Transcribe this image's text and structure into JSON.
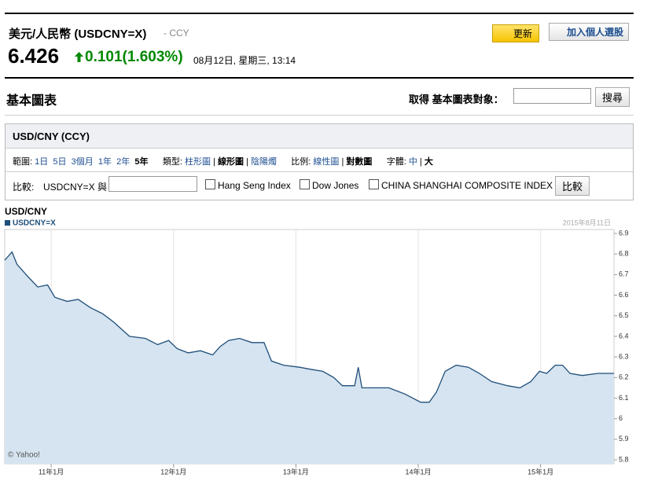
{
  "header": {
    "title": "美元/人民幣 (USDCNY=X)",
    "exchange": "- CCY",
    "price": "6.426",
    "change": "0.101(1.603%)",
    "datetime": "08月12日, 星期三, 13:14",
    "refresh": "更新",
    "add_portfolio": "加入個人選股"
  },
  "section": {
    "title": "基本圖表",
    "search_label": "取得 基本圖表對象：",
    "search_button": "搜尋"
  },
  "panel": {
    "title": "USD/CNY (CCY)",
    "range_label": "範圍:",
    "ranges": [
      "1日",
      "5日",
      "3個月",
      "1年",
      "2年",
      "5年"
    ],
    "type_label": "類型:",
    "types": [
      "柱形圖",
      "線形圖",
      "陰陽燭"
    ],
    "scale_label": "比例:",
    "scales": [
      "線性圖",
      "對數圖"
    ],
    "font_label": "字體:",
    "fonts": [
      "中",
      "大"
    ],
    "compare_label": "比較:",
    "compare_base": "USDCNY=X 與",
    "compare_options": [
      "Hang Seng Index",
      "Dow Jones",
      "CHINA SHANGHAI COMPOSITE INDEX"
    ],
    "compare_button": "比較"
  },
  "chart_data": {
    "type": "area",
    "title": "USD/CNY",
    "date_label": "2015年8月11日",
    "credit": "© Yahoo!",
    "x": [
      2010.62,
      2010.68,
      2010.72,
      2010.81,
      2010.89,
      2010.97,
      2011.03,
      2011.13,
      2011.22,
      2011.32,
      2011.42,
      2011.51,
      2011.64,
      2011.77,
      2011.87,
      2011.96,
      2012.03,
      2012.12,
      2012.22,
      2012.32,
      2012.38,
      2012.45,
      2012.54,
      2012.64,
      2012.74,
      2012.8,
      2012.9,
      2013.03,
      2013.12,
      2013.22,
      2013.31,
      2013.38,
      2013.48,
      2013.51,
      2013.54,
      2013.64,
      2013.76,
      2013.89,
      2014.02,
      2014.09,
      2014.15,
      2014.22,
      2014.31,
      2014.41,
      2014.5,
      2014.6,
      2014.73,
      2014.83,
      2014.92,
      2014.99,
      2015.05,
      2015.12,
      2015.18,
      2015.24,
      2015.34,
      2015.47,
      2015.6
    ],
    "series": [
      {
        "name": "USDCNY=X",
        "color": "#1f4e79",
        "values": [
          6.77,
          6.81,
          6.75,
          6.69,
          6.64,
          6.65,
          6.59,
          6.57,
          6.58,
          6.54,
          6.51,
          6.47,
          6.4,
          6.39,
          6.36,
          6.38,
          6.34,
          6.32,
          6.33,
          6.31,
          6.35,
          6.38,
          6.39,
          6.37,
          6.37,
          6.28,
          6.26,
          6.25,
          6.24,
          6.23,
          6.2,
          6.16,
          6.16,
          6.25,
          6.15,
          6.15,
          6.15,
          6.12,
          6.08,
          6.08,
          6.13,
          6.23,
          6.26,
          6.25,
          6.22,
          6.18,
          6.16,
          6.15,
          6.18,
          6.23,
          6.22,
          6.26,
          6.26,
          6.22,
          6.21,
          6.22,
          6.22
        ]
      }
    ],
    "xlim": [
      2010.62,
      2015.6
    ],
    "xticks": [
      {
        "value": 2011,
        "label": "11年1月"
      },
      {
        "value": 2012,
        "label": "12年1月"
      },
      {
        "value": 2013,
        "label": "13年1月"
      },
      {
        "value": 2014,
        "label": "14年1月"
      },
      {
        "value": 2015,
        "label": "15年1月"
      }
    ],
    "ylim": [
      5.8,
      6.9
    ],
    "yticks": [
      5.8,
      5.9,
      6.0,
      6.1,
      6.2,
      6.3,
      6.4,
      6.5,
      6.6,
      6.7,
      6.8,
      6.9
    ],
    "grid": true
  }
}
